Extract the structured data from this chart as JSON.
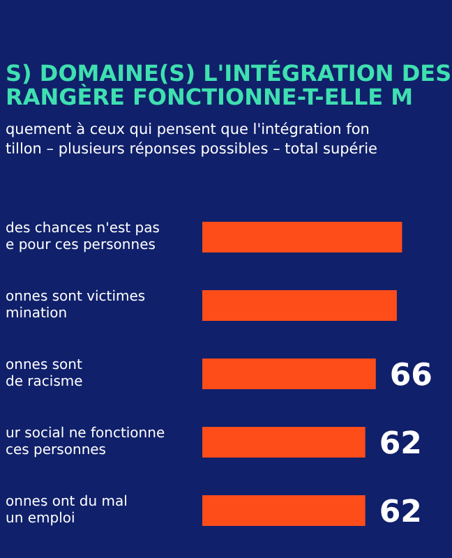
{
  "chart_data": {
    "type": "bar",
    "orientation": "horizontal",
    "title": "S) DOMAINE(S) L'INTÉGRATION DES\nRANGÈRE FONCTIONNE-T-ELLE M",
    "subtitle": "quement à ceux qui pensent que l'intégration fon\ntillon – plusieurs réponses possibles – total supérie",
    "categories": [
      "des chances n'est pas\ne pour ces personnes",
      "onnes sont victimes\nmination",
      "onnes sont\nde racisme",
      "ur social ne fonctionne\nces personnes",
      "onnes ont du mal\nun emploi"
    ],
    "values": [
      76,
      74,
      66,
      62,
      62
    ],
    "value_labels": [
      null,
      null,
      "66",
      "62",
      "62"
    ],
    "color": "#ff4d1a"
  }
}
